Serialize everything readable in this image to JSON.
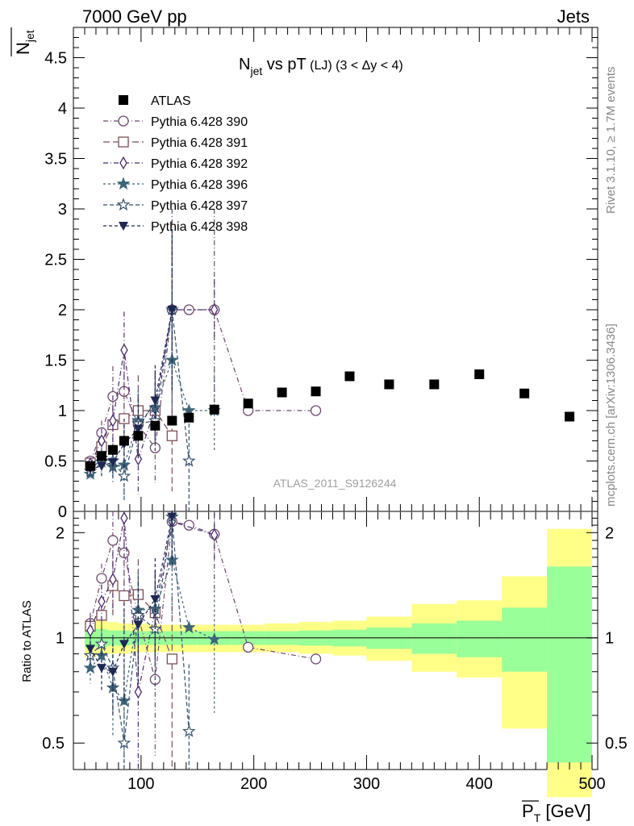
{
  "header": {
    "left": "7000 GeV pp",
    "right": "Jets",
    "side_rivet": "Rivet 3.1.10, ≥ 1.7M events",
    "side_mcplots": "mcplots.cern.ch [arXiv:1306.3436]",
    "watermark": "ATLAS_2011_S9126244"
  },
  "chart_data": [
    {
      "type": "scatter",
      "title_parts": {
        "main": "N",
        "sub": "jet",
        "mid": " vs pT",
        "tag": " (LJ) (3 < Δy < 4)"
      },
      "ylabel": "N̅jet",
      "ylim": [
        0,
        4.8
      ],
      "xlim": [
        40,
        505
      ],
      "yticks": [
        {
          "v": 0,
          "label": "0"
        },
        {
          "v": 0.5,
          "label": "0.5"
        },
        {
          "v": 1,
          "label": "1"
        },
        {
          "v": 1.5,
          "label": "1.5"
        },
        {
          "v": 2,
          "label": "2"
        },
        {
          "v": 2.5,
          "label": "2.5"
        },
        {
          "v": 3,
          "label": "3"
        },
        {
          "v": 3.5,
          "label": "3.5"
        },
        {
          "v": 4,
          "label": "4"
        },
        {
          "v": 4.5,
          "label": "4.5"
        }
      ],
      "legend_position": "top-left",
      "series": [
        {
          "name": "ATLAS",
          "color": "#000000",
          "marker": "filled-square",
          "points": [
            {
              "x": 55,
              "y": 0.45
            },
            {
              "x": 65,
              "y": 0.55
            },
            {
              "x": 75,
              "y": 0.61
            },
            {
              "x": 85,
              "y": 0.7
            },
            {
              "x": 97.5,
              "y": 0.75
            },
            {
              "x": 112.5,
              "y": 0.85
            },
            {
              "x": 127.5,
              "y": 0.9
            },
            {
              "x": 142.5,
              "y": 0.93
            },
            {
              "x": 165,
              "y": 1.01
            },
            {
              "x": 195,
              "y": 1.07
            },
            {
              "x": 225,
              "y": 1.18
            },
            {
              "x": 255,
              "y": 1.19
            },
            {
              "x": 285,
              "y": 1.34
            },
            {
              "x": 320,
              "y": 1.26
            },
            {
              "x": 360,
              "y": 1.26
            },
            {
              "x": 400,
              "y": 1.36
            },
            {
              "x": 440,
              "y": 1.17
            },
            {
              "x": 480,
              "y": 0.94
            }
          ]
        },
        {
          "name": "Pythia 6.428 390",
          "color": "#6e4a6e",
          "marker": "open-circle",
          "dash": "6,3,1,3",
          "points": [
            {
              "x": 55,
              "y": 0.5,
              "e": 0.05
            },
            {
              "x": 65,
              "y": 0.78,
              "e": 0.12
            },
            {
              "x": 75,
              "y": 1.14,
              "e": 0.3
            },
            {
              "x": 85,
              "y": 1.19,
              "e": 0.4
            },
            {
              "x": 97.5,
              "y": 0.86,
              "e": 0.3
            },
            {
              "x": 112.5,
              "y": 0.63,
              "e": 0.35
            },
            {
              "x": 127.5,
              "y": 2.0,
              "e": 1.0
            },
            {
              "x": 142.5,
              "y": 2.0,
              "e": 0
            },
            {
              "x": 165,
              "y": 2.0,
              "e": 1.0
            },
            {
              "x": 195,
              "y": 1.0,
              "e": 0
            },
            {
              "x": 255,
              "y": 1.0,
              "e": 0
            }
          ]
        },
        {
          "name": "Pythia 6.428 391",
          "color": "#7a5058",
          "marker": "open-square",
          "dash": "8,4",
          "points": [
            {
              "x": 55,
              "y": 0.48,
              "e": 0.05
            },
            {
              "x": 65,
              "y": 0.64,
              "e": 0.1
            },
            {
              "x": 75,
              "y": 0.86,
              "e": 0.2
            },
            {
              "x": 85,
              "y": 0.92,
              "e": 0.35
            },
            {
              "x": 97.5,
              "y": 1.0,
              "e": 0.35
            },
            {
              "x": 112.5,
              "y": 1.0,
              "e": 0.4
            },
            {
              "x": 127.5,
              "y": 0.75,
              "e": 0.55
            }
          ]
        },
        {
          "name": "Pythia 6.428 392",
          "color": "#4b2c6e",
          "marker": "open-diamond",
          "dash": "6,3,1,3",
          "points": [
            {
              "x": 55,
              "y": 0.47,
              "e": 0.05
            },
            {
              "x": 65,
              "y": 0.7,
              "e": 0.12
            },
            {
              "x": 75,
              "y": 0.9,
              "e": 0.25
            },
            {
              "x": 85,
              "y": 1.6,
              "e": 0.38
            },
            {
              "x": 97.5,
              "y": 0.52,
              "e": 0.35
            },
            {
              "x": 112.5,
              "y": 1.02,
              "e": 0.35
            },
            {
              "x": 127.5,
              "y": 2.0,
              "e": 0.7
            },
            {
              "x": 165,
              "y": 2.0,
              "e": 0.3
            }
          ]
        },
        {
          "name": "Pythia 6.428 396",
          "color": "#3f6478",
          "marker": "filled-star",
          "dash": "3,3",
          "points": [
            {
              "x": 55,
              "y": 0.37,
              "e": 0.05
            },
            {
              "x": 65,
              "y": 0.49,
              "e": 0.1
            },
            {
              "x": 75,
              "y": 0.44,
              "e": 0.15
            },
            {
              "x": 85,
              "y": 0.46,
              "e": 0.3
            },
            {
              "x": 97.5,
              "y": 0.9,
              "e": 0.3
            },
            {
              "x": 112.5,
              "y": 1.03,
              "e": 0.3
            },
            {
              "x": 127.5,
              "y": 1.5,
              "e": 0.6
            },
            {
              "x": 142.5,
              "y": 1.0,
              "e": 0
            },
            {
              "x": 165,
              "y": 1.0,
              "e": 0.4
            }
          ]
        },
        {
          "name": "Pythia 6.428 397",
          "color": "#35506a",
          "marker": "open-star",
          "dash": "5,3",
          "points": [
            {
              "x": 55,
              "y": 0.4,
              "e": 0.05
            },
            {
              "x": 65,
              "y": 0.53,
              "e": 0.1
            },
            {
              "x": 75,
              "y": 0.5,
              "e": 0.15
            },
            {
              "x": 85,
              "y": 0.35,
              "e": 0.25
            },
            {
              "x": 97.5,
              "y": 0.87,
              "e": 0.3
            },
            {
              "x": 112.5,
              "y": 0.9,
              "e": 0.3
            },
            {
              "x": 127.5,
              "y": 2.0,
              "e": 0.8
            },
            {
              "x": 142.5,
              "y": 0.5,
              "e": 0.5
            }
          ]
        },
        {
          "name": "Pythia 6.428 398",
          "color": "#1e2850",
          "marker": "filled-tri-down",
          "dash": "4,3",
          "points": [
            {
              "x": 55,
              "y": 0.42,
              "e": 0.05
            },
            {
              "x": 65,
              "y": 0.45,
              "e": 0.1
            },
            {
              "x": 75,
              "y": 0.49,
              "e": 0.15
            },
            {
              "x": 85,
              "y": 0.67,
              "e": 0.25
            },
            {
              "x": 97.5,
              "y": 0.82,
              "e": 0.3
            },
            {
              "x": 112.5,
              "y": 1.1,
              "e": 0.35
            },
            {
              "x": 127.5,
              "y": 2.0,
              "e": 0.8
            }
          ]
        }
      ]
    },
    {
      "type": "scatter",
      "ylabel": "Ratio to ATLAS",
      "xlabel_main": "P",
      "xlabel_sub": "T",
      "xlabel_unit": " [GeV]",
      "yscale": "log",
      "ylim": [
        0.42,
        2.3
      ],
      "xlim": [
        40,
        505
      ],
      "xticks": [
        {
          "v": 100,
          "label": "100"
        },
        {
          "v": 200,
          "label": "200"
        },
        {
          "v": 300,
          "label": "300"
        },
        {
          "v": 400,
          "label": "400"
        },
        {
          "v": 500,
          "label": "500"
        }
      ],
      "yticks": [
        {
          "v": 0.5,
          "label": "0.5"
        },
        {
          "v": 1,
          "label": "1"
        },
        {
          "v": 2,
          "label": "2"
        }
      ],
      "bands": [
        {
          "x0": 50,
          "x1": 60,
          "inner": [
            0.94,
            1.06
          ],
          "outer": [
            0.88,
            1.12
          ]
        },
        {
          "x0": 60,
          "x1": 70,
          "inner": [
            0.94,
            1.06
          ],
          "outer": [
            0.89,
            1.12
          ]
        },
        {
          "x0": 70,
          "x1": 80,
          "inner": [
            0.95,
            1.05
          ],
          "outer": [
            0.9,
            1.11
          ]
        },
        {
          "x0": 80,
          "x1": 90,
          "inner": [
            0.95,
            1.05
          ],
          "outer": [
            0.9,
            1.1
          ]
        },
        {
          "x0": 90,
          "x1": 105,
          "inner": [
            0.955,
            1.045
          ],
          "outer": [
            0.91,
            1.1
          ]
        },
        {
          "x0": 105,
          "x1": 120,
          "inner": [
            0.955,
            1.045
          ],
          "outer": [
            0.91,
            1.09
          ]
        },
        {
          "x0": 120,
          "x1": 135,
          "inner": [
            0.955,
            1.045
          ],
          "outer": [
            0.91,
            1.09
          ]
        },
        {
          "x0": 135,
          "x1": 150,
          "inner": [
            0.955,
            1.045
          ],
          "outer": [
            0.91,
            1.09
          ]
        },
        {
          "x0": 150,
          "x1": 180,
          "inner": [
            0.955,
            1.045
          ],
          "outer": [
            0.91,
            1.09
          ]
        },
        {
          "x0": 180,
          "x1": 210,
          "inner": [
            0.955,
            1.045
          ],
          "outer": [
            0.91,
            1.09
          ]
        },
        {
          "x0": 210,
          "x1": 240,
          "inner": [
            0.955,
            1.045
          ],
          "outer": [
            0.91,
            1.1
          ]
        },
        {
          "x0": 240,
          "x1": 270,
          "inner": [
            0.95,
            1.05
          ],
          "outer": [
            0.9,
            1.11
          ]
        },
        {
          "x0": 270,
          "x1": 300,
          "inner": [
            0.945,
            1.055
          ],
          "outer": [
            0.89,
            1.12
          ]
        },
        {
          "x0": 300,
          "x1": 340,
          "inner": [
            0.93,
            1.07
          ],
          "outer": [
            0.86,
            1.15
          ]
        },
        {
          "x0": 340,
          "x1": 380,
          "inner": [
            0.9,
            1.1
          ],
          "outer": [
            0.8,
            1.25
          ]
        },
        {
          "x0": 380,
          "x1": 420,
          "inner": [
            0.88,
            1.12
          ],
          "outer": [
            0.77,
            1.28
          ]
        },
        {
          "x0": 420,
          "x1": 460,
          "inner": [
            0.8,
            1.22
          ],
          "outer": [
            0.55,
            1.5
          ]
        },
        {
          "x0": 460,
          "x1": 500,
          "inner": [
            0.44,
            1.6
          ],
          "outer": [
            0.35,
            2.05
          ]
        }
      ],
      "series": [
        {
          "name": "Pythia 6.428 390",
          "color": "#6e4a6e",
          "marker": "open-circle",
          "dash": "6,3,1,3",
          "points": [
            {
              "x": 55,
              "y": 1.1,
              "e": 0.08
            },
            {
              "x": 65,
              "y": 1.48,
              "e": 0.15
            },
            {
              "x": 75,
              "y": 1.9,
              "e": 0.4
            },
            {
              "x": 85,
              "y": 1.75,
              "e": 0.45
            },
            {
              "x": 97.5,
              "y": 1.15,
              "e": 0.3
            },
            {
              "x": 112.5,
              "y": 0.76,
              "e": 0.3
            },
            {
              "x": 127.5,
              "y": 2.15,
              "e": 0.6
            },
            {
              "x": 142.5,
              "y": 2.1,
              "e": 0
            },
            {
              "x": 165,
              "y": 1.98,
              "e": 0.6
            },
            {
              "x": 195,
              "y": 0.94,
              "e": 0
            },
            {
              "x": 255,
              "y": 0.87,
              "e": 0
            }
          ]
        },
        {
          "name": "Pythia 6.428 391",
          "color": "#7a5058",
          "marker": "open-square",
          "dash": "8,4",
          "points": [
            {
              "x": 55,
              "y": 1.08,
              "e": 0.08
            },
            {
              "x": 65,
              "y": 1.16,
              "e": 0.12
            },
            {
              "x": 75,
              "y": 1.41,
              "e": 0.25
            },
            {
              "x": 85,
              "y": 1.32,
              "e": 0.35
            },
            {
              "x": 97.5,
              "y": 1.33,
              "e": 0.35
            },
            {
              "x": 112.5,
              "y": 1.18,
              "e": 0.35
            },
            {
              "x": 127.5,
              "y": 0.87,
              "e": 0.45
            }
          ]
        },
        {
          "name": "Pythia 6.428 392",
          "color": "#4b2c6e",
          "marker": "open-diamond",
          "dash": "6,3,1,3",
          "points": [
            {
              "x": 55,
              "y": 1.05,
              "e": 0.08
            },
            {
              "x": 65,
              "y": 1.27,
              "e": 0.15
            },
            {
              "x": 75,
              "y": 1.47,
              "e": 0.3
            },
            {
              "x": 85,
              "y": 2.2,
              "e": 0.5
            },
            {
              "x": 97.5,
              "y": 0.7,
              "e": 0.3
            },
            {
              "x": 112.5,
              "y": 1.2,
              "e": 0.35
            },
            {
              "x": 127.5,
              "y": 2.15,
              "e": 0.55
            },
            {
              "x": 165,
              "y": 1.97,
              "e": 0.3
            }
          ]
        },
        {
          "name": "Pythia 6.428 396",
          "color": "#3f6478",
          "marker": "filled-star",
          "dash": "3,3",
          "points": [
            {
              "x": 55,
              "y": 0.82,
              "e": 0.08
            },
            {
              "x": 65,
              "y": 0.89,
              "e": 0.12
            },
            {
              "x": 75,
              "y": 0.72,
              "e": 0.2
            },
            {
              "x": 85,
              "y": 0.66,
              "e": 0.3
            },
            {
              "x": 97.5,
              "y": 1.2,
              "e": 0.35
            },
            {
              "x": 112.5,
              "y": 1.21,
              "e": 0.35
            },
            {
              "x": 127.5,
              "y": 1.67,
              "e": 0.5
            },
            {
              "x": 142.5,
              "y": 1.07,
              "e": 0
            },
            {
              "x": 165,
              "y": 0.99,
              "e": 0.38
            }
          ]
        },
        {
          "name": "Pythia 6.428 397",
          "color": "#35506a",
          "marker": "open-star",
          "dash": "5,3",
          "points": [
            {
              "x": 55,
              "y": 0.89,
              "e": 0.08
            },
            {
              "x": 65,
              "y": 0.96,
              "e": 0.12
            },
            {
              "x": 75,
              "y": 0.82,
              "e": 0.2
            },
            {
              "x": 85,
              "y": 0.5,
              "e": 0.25
            },
            {
              "x": 97.5,
              "y": 1.16,
              "e": 0.35
            },
            {
              "x": 112.5,
              "y": 1.06,
              "e": 0.35
            },
            {
              "x": 127.5,
              "y": 2.22,
              "e": 0.6
            },
            {
              "x": 142.5,
              "y": 0.54,
              "e": 0.3
            }
          ]
        },
        {
          "name": "Pythia 6.428 398",
          "color": "#1e2850",
          "marker": "filled-tri-down",
          "dash": "4,3",
          "points": [
            {
              "x": 55,
              "y": 0.93,
              "e": 0.08
            },
            {
              "x": 65,
              "y": 0.82,
              "e": 0.12
            },
            {
              "x": 75,
              "y": 0.8,
              "e": 0.2
            },
            {
              "x": 85,
              "y": 0.96,
              "e": 0.3
            },
            {
              "x": 97.5,
              "y": 1.09,
              "e": 0.35
            },
            {
              "x": 112.5,
              "y": 1.29,
              "e": 0.4
            },
            {
              "x": 127.5,
              "y": 2.22,
              "e": 0.6
            }
          ]
        }
      ]
    }
  ]
}
